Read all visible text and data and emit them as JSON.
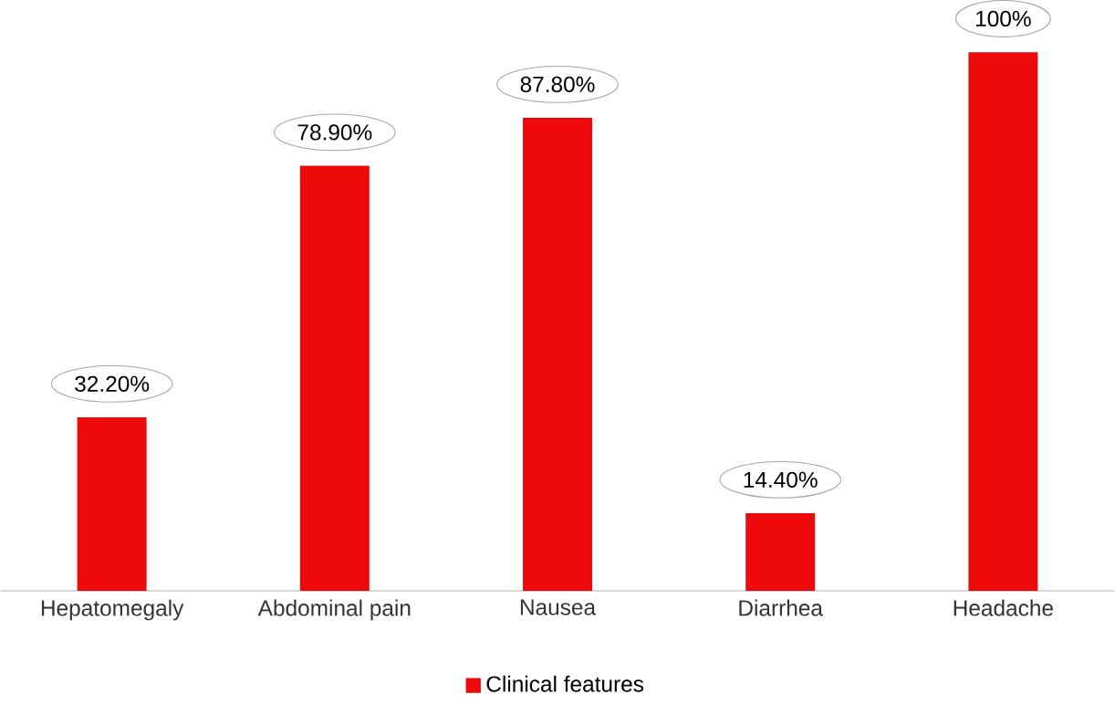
{
  "chart_data": {
    "type": "bar",
    "categories": [
      "Hepatomegaly",
      "Abdominal pain",
      "Nausea",
      "Diarrhea",
      "Headache"
    ],
    "series": [
      {
        "name": "Clinical features",
        "color": "#ee0a0a",
        "values": [
          32.2,
          78.9,
          87.8,
          14.4,
          100
        ],
        "value_labels": [
          "32.20%",
          "78.90%",
          "87.80%",
          "14.40%",
          "100%"
        ]
      }
    ],
    "legend": "bottom",
    "grid": false
  }
}
